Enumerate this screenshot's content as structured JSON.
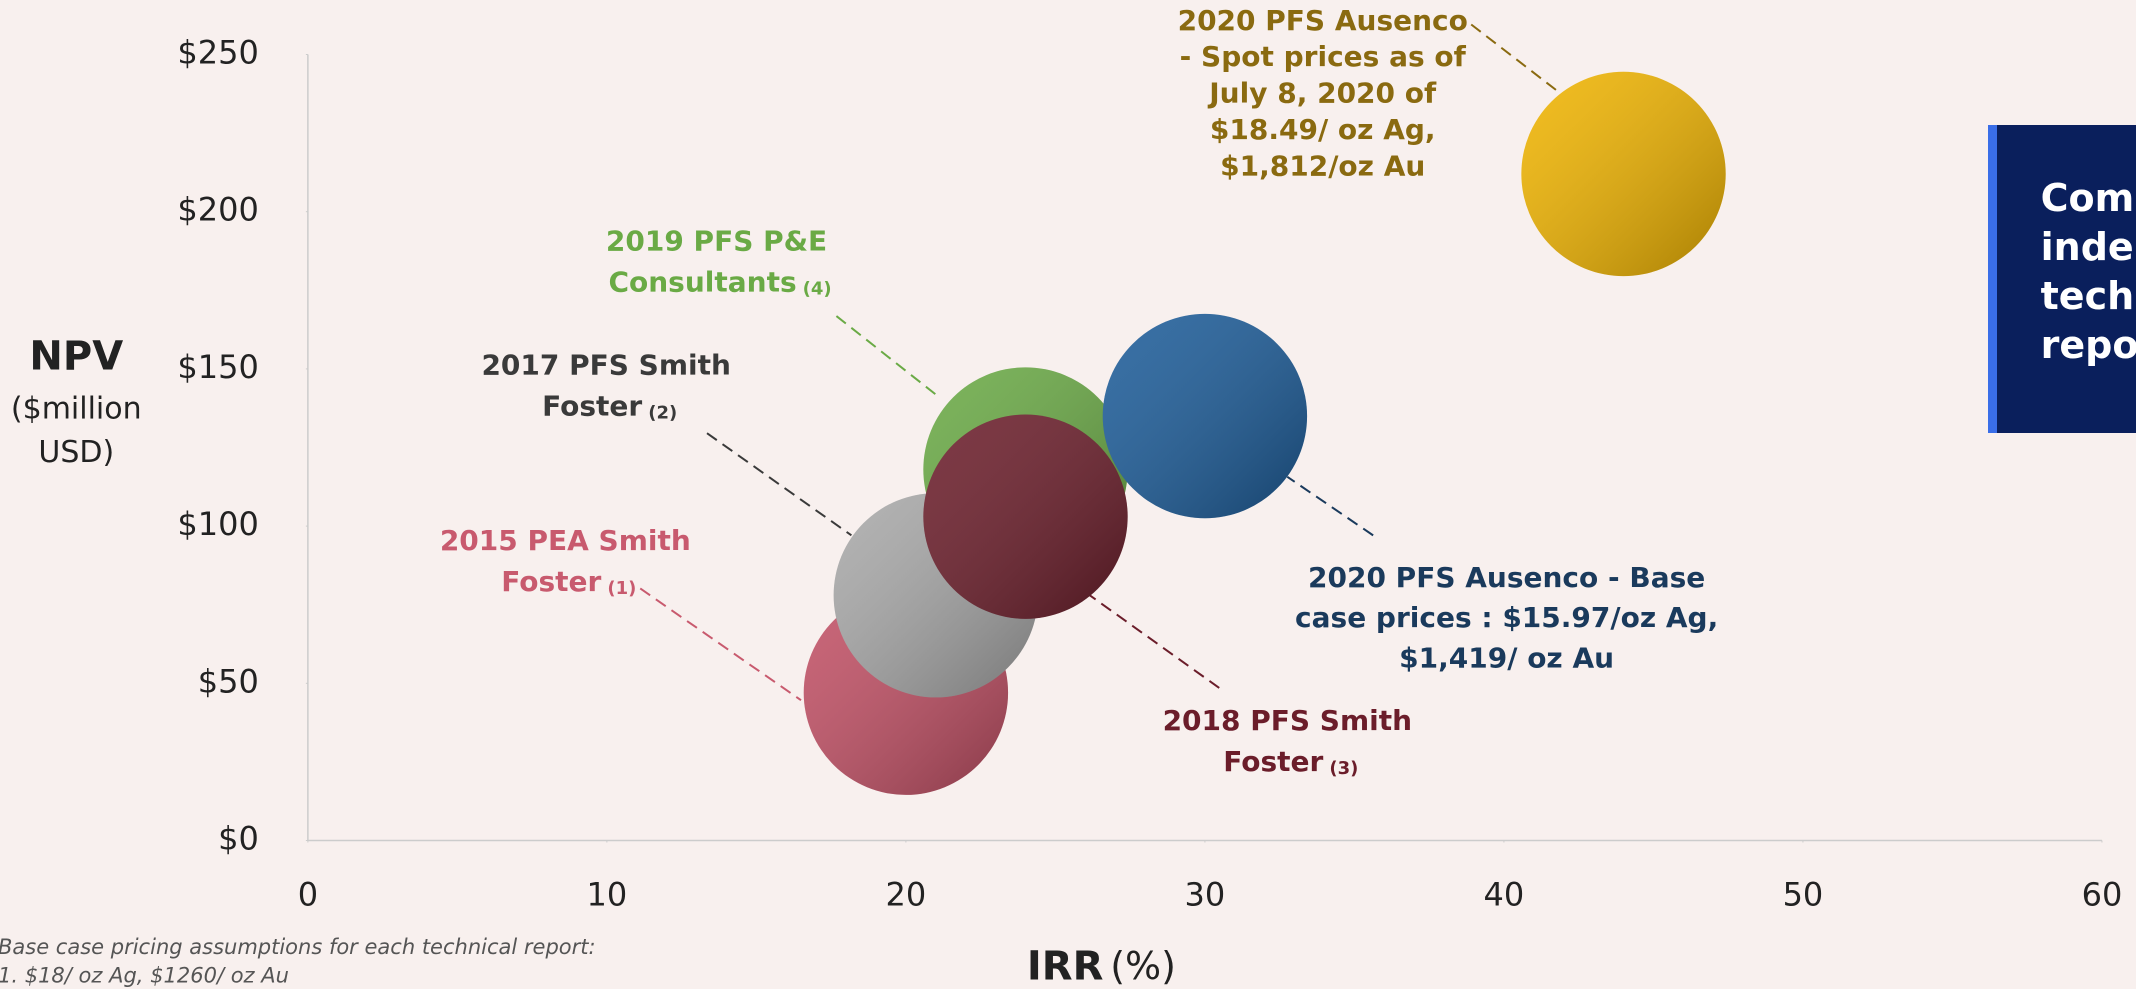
{
  "chart_data": {
    "type": "scatter",
    "y_label": "NPV",
    "y_label_sub": [
      "($million",
      "USD)"
    ],
    "x_label": "IRR",
    "x_label_sub": "(%)",
    "xlim": [
      0,
      60
    ],
    "xticks": [
      0,
      10,
      20,
      30,
      40,
      50,
      60
    ],
    "ylim": [
      0,
      250
    ],
    "yticks": [
      {
        "value": 0,
        "label": "$0"
      },
      {
        "value": 50,
        "label": "$50"
      },
      {
        "value": 100,
        "label": "$100"
      },
      {
        "value": 150,
        "label": "$150"
      },
      {
        "value": 200,
        "label": "$200"
      },
      {
        "value": 250,
        "label": "$250"
      }
    ],
    "series": [
      {
        "label": [
          "2015 PEA Smith",
          "Foster"
        ],
        "note": "(1)",
        "color": "#c25065",
        "label_color": "#c85a6e",
        "x": [
          20
        ],
        "values": [
          47
        ]
      },
      {
        "label": [
          "2017 PFS Smith",
          "Foster"
        ],
        "note": "(2)",
        "color": "#a9a9a9",
        "label_color": "#3a3a3a",
        "x": [
          21
        ],
        "values": [
          78
        ]
      },
      {
        "label": [
          "2019 PFS P&E",
          "Consultants"
        ],
        "note": "(4)",
        "color": "#6aaa45",
        "label_color": "#6aaa45",
        "x": [
          24
        ],
        "values": [
          118
        ]
      },
      {
        "label": [
          "2018 PFS Smith",
          "Foster"
        ],
        "note": "(3)",
        "color": "#6b1d2a",
        "label_color": "#6b1d2a",
        "x": [
          24
        ],
        "values": [
          103
        ]
      },
      {
        "label": [
          "2020 PFS Ausenco - Base",
          "case prices :  $15.97/oz Ag,",
          "$1,419/ oz Au"
        ],
        "color": "#1c5c99",
        "label_color": "#1a3a5c",
        "x": [
          30
        ],
        "values": [
          135
        ]
      },
      {
        "label": [
          "2020 PFS Ausenco",
          "- Spot prices  as of",
          "July 8, 2020 of",
          "$18.49/ oz Ag,",
          "$1,812/oz Au"
        ],
        "color": "#f0b400",
        "label_color": "#8a6a10",
        "x": [
          44
        ],
        "values": [
          212
        ]
      }
    ],
    "side_box": [
      "Com",
      "inde",
      "tech",
      "repo"
    ],
    "footnote": [
      "Base case pricing assumptions for each technical report:",
      "1.    $18/ oz Ag, $1260/ oz Au"
    ]
  }
}
